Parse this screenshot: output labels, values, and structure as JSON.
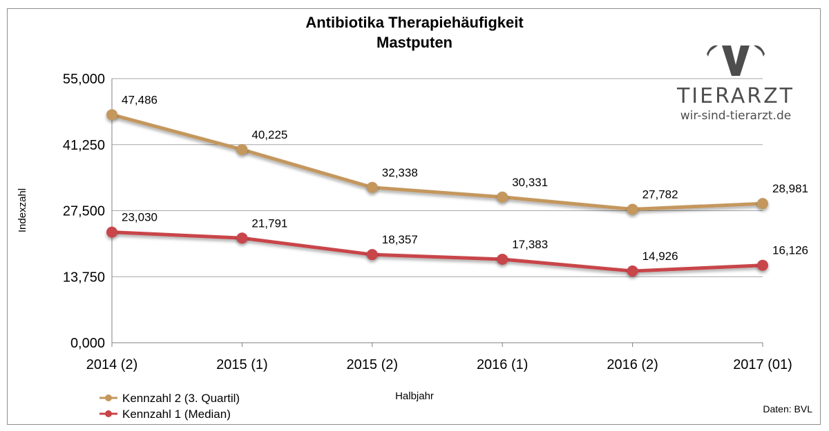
{
  "logo": {
    "word": "TIERARZT",
    "url": "wir-sind-tierarzt.de",
    "color": "#4d4d4d"
  },
  "source_note": "Daten: BVL",
  "chart_data": {
    "type": "line",
    "title_line1": "Antibiotika Therapiehäufigkeit",
    "title_line2": "Mastputen",
    "xlabel": "Halbjahr",
    "ylabel": "Indexzahl",
    "categories": [
      "2014 (2)",
      "2015 (1)",
      "2015 (2)",
      "2016 (1)",
      "2016 (2)",
      "2017 (01)"
    ],
    "ylim": [
      0,
      55000
    ],
    "yticks": [
      0,
      13750,
      27500,
      41250,
      55000
    ],
    "ytick_labels": [
      "0,000",
      "13,750",
      "27,500",
      "41,250",
      "55,000"
    ],
    "grid": true,
    "legend_position": "bottom-left",
    "series": [
      {
        "name": "Kennzahl 2 (3. Quartil)",
        "color": "#c4975d",
        "values": [
          47486,
          40225,
          32338,
          30331,
          27782,
          28981
        ],
        "labels": [
          "47,486",
          "40,225",
          "32,338",
          "30,331",
          "27,782",
          "28,981"
        ]
      },
      {
        "name": "Kennzahl 1 (Median)",
        "color": "#c84448",
        "values": [
          23030,
          21791,
          18357,
          17383,
          14926,
          16126
        ],
        "labels": [
          "23,030",
          "21,791",
          "18,357",
          "17,383",
          "14,926",
          "16,126"
        ]
      }
    ]
  }
}
